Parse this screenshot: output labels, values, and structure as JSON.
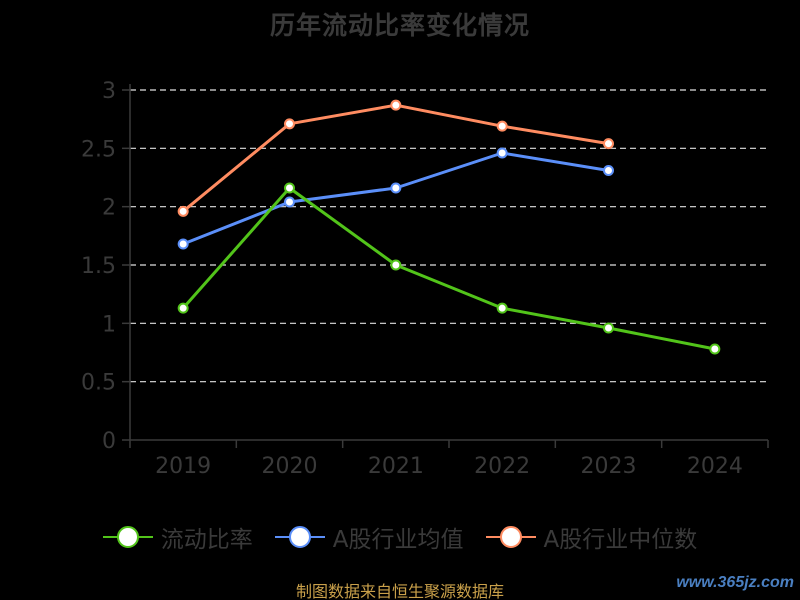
{
  "chart_data": {
    "type": "line",
    "title": "历年流动比率变化情况",
    "categories": [
      "2019",
      "2020",
      "2021",
      "2022",
      "2023",
      "2024"
    ],
    "yticks": [
      "0",
      "0.5",
      "1",
      "1.5",
      "2",
      "2.5",
      "3"
    ],
    "ylim": [
      0,
      3
    ],
    "grid": true,
    "legend_position": "bottom",
    "series": [
      {
        "name": "流动比率",
        "color": "#52c41a",
        "values": [
          1.13,
          2.16,
          1.5,
          1.13,
          0.96,
          0.78
        ]
      },
      {
        "name": "A股行业均值",
        "color": "#5b8ff9",
        "values": [
          1.68,
          2.04,
          2.16,
          2.46,
          2.31,
          null
        ]
      },
      {
        "name": "A股行业中位数",
        "color": "#ff8c61",
        "values": [
          1.96,
          2.71,
          2.87,
          2.69,
          2.54,
          null
        ]
      }
    ]
  },
  "source": "制图数据来自恒生聚源数据库",
  "watermark": "www.365jz.com"
}
